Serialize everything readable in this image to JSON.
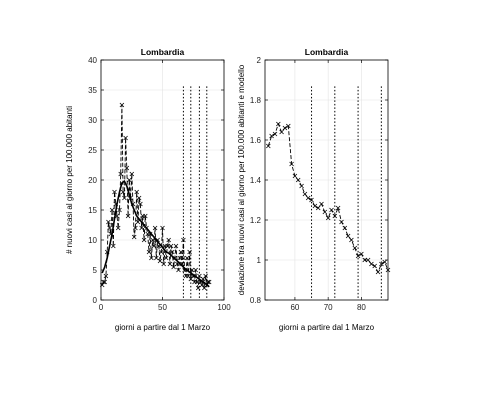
{
  "chart_data": [
    {
      "type": "line",
      "title": "Lombardia",
      "xlabel": "giorni a partire dal 1 Marzo",
      "ylabel": "# nuovi casi al giorno per 100.000 abitanti",
      "xlim": [
        0,
        100
      ],
      "ylim": [
        0,
        40
      ],
      "xticks": [
        0,
        50,
        100
      ],
      "yticks": [
        0,
        5,
        10,
        15,
        20,
        25,
        30,
        35,
        40
      ],
      "grid": true,
      "series": [
        {
          "style": "dashed-markers",
          "x": [
            1,
            2,
            3,
            4,
            5,
            6,
            7,
            8,
            9,
            10,
            11,
            12,
            13,
            14,
            15,
            16,
            17,
            18,
            19,
            20,
            21,
            22,
            23,
            24,
            25,
            26,
            27,
            28,
            29,
            30,
            31,
            32,
            33,
            34,
            35,
            36,
            37,
            38,
            39,
            40,
            41,
            42,
            43,
            44,
            45,
            46,
            47,
            48,
            49,
            50,
            51,
            52,
            53,
            54,
            55,
            56,
            57,
            58,
            59,
            60,
            61,
            62,
            63,
            64,
            65,
            66,
            67,
            68,
            69,
            70,
            71,
            72,
            73,
            74,
            75,
            76,
            77,
            78,
            79,
            80,
            81,
            82,
            83,
            84,
            85,
            86,
            87,
            88
          ],
          "y": [
            2.5,
            3,
            3,
            4,
            8,
            13,
            12,
            11,
            15,
            9,
            18,
            16,
            14,
            12,
            15,
            21,
            32.5,
            18,
            17,
            27,
            22,
            14,
            20,
            17,
            21,
            16,
            10.5,
            12,
            18,
            13,
            17,
            16,
            12,
            14,
            10,
            14,
            12,
            11,
            8,
            11,
            7,
            10,
            9,
            12,
            7,
            10,
            9,
            6.5,
            8,
            12,
            6,
            9,
            7,
            9,
            10,
            6,
            9,
            8,
            5.5,
            7,
            9,
            6,
            5,
            7,
            8,
            6,
            10,
            5,
            4,
            7,
            4,
            8,
            3.5,
            5,
            4,
            3,
            5,
            3,
            2,
            4,
            3,
            2.5,
            3.5,
            2,
            4,
            2.5,
            3,
            3
          ]
        },
        {
          "style": "solid",
          "x": [
            1,
            3,
            5,
            7,
            9,
            11,
            13,
            15,
            17,
            19,
            21,
            23,
            25,
            27,
            29,
            31,
            33,
            35,
            37,
            39,
            41,
            43,
            45,
            47,
            49,
            51,
            53,
            55,
            57,
            59,
            61,
            63,
            65,
            67,
            69,
            71,
            73,
            75,
            77,
            79,
            81,
            83,
            85,
            87,
            88
          ],
          "y": [
            4.5,
            5.5,
            7,
            9,
            11,
            13.5,
            16,
            18,
            19.5,
            19.8,
            19,
            17.5,
            16,
            15,
            14,
            13.5,
            13,
            12.5,
            12,
            11.5,
            11,
            10.5,
            10,
            9.5,
            9,
            8.5,
            8,
            7.8,
            7.5,
            7,
            6.7,
            6.3,
            5.9,
            5.5,
            5.1,
            4.8,
            4.5,
            4.2,
            3.9,
            3.6,
            3.3,
            3,
            2.7,
            2.4,
            2.2
          ]
        }
      ],
      "vlines": [
        67,
        73,
        80,
        86
      ]
    },
    {
      "type": "line",
      "title": "Lombardia",
      "xlabel": "giorni a partire dal 1 Marzo",
      "ylabel": "deviazione tra nuovi casi al giorno per 100.000 abitanti e modello",
      "xlim": [
        51,
        88
      ],
      "ylim": [
        0.8,
        2
      ],
      "xticks": [
        60,
        70,
        80
      ],
      "yticks": [
        0.8,
        1,
        1.2,
        1.4,
        1.6,
        1.8,
        2
      ],
      "grid": true,
      "series": [
        {
          "style": "dashed-markers",
          "x": [
            52,
            53,
            54,
            55,
            56,
            57,
            58,
            59,
            60,
            61,
            62,
            63,
            64,
            65,
            66,
            67,
            68,
            69,
            70,
            71,
            72,
            73,
            74,
            75,
            76,
            77,
            78,
            79,
            80,
            81,
            82,
            83,
            84,
            85,
            86,
            87,
            88
          ],
          "y": [
            1.57,
            1.62,
            1.63,
            1.68,
            1.64,
            1.66,
            1.67,
            1.48,
            1.42,
            1.4,
            1.37,
            1.33,
            1.31,
            1.3,
            1.27,
            1.26,
            1.28,
            1.24,
            1.21,
            1.25,
            1.22,
            1.26,
            1.19,
            1.16,
            1.12,
            1.1,
            1.06,
            1.02,
            1.03,
            1.0,
            1.0,
            0.98,
            0.97,
            0.94,
            0.98,
            0.99,
            0.95
          ]
        }
      ],
      "vlines": [
        65,
        72,
        79,
        86
      ]
    }
  ]
}
